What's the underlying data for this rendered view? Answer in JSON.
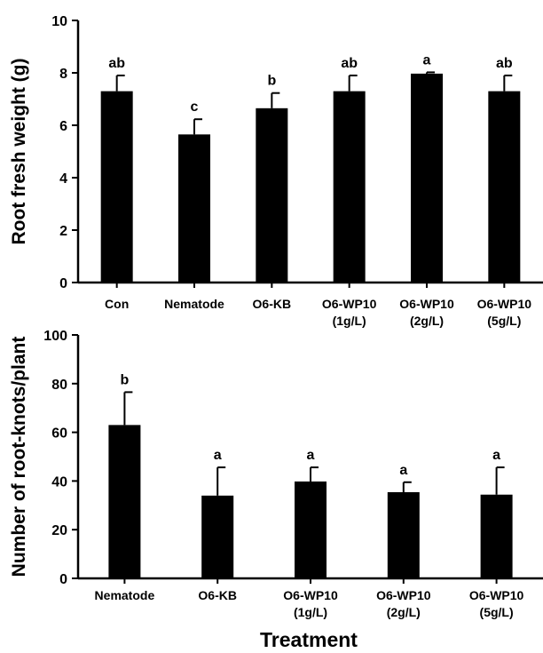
{
  "figure": {
    "xlabel": "Treatment"
  },
  "chart_data": [
    {
      "type": "bar",
      "ylabel": "Root fresh weight (g)",
      "ylim": [
        0,
        10
      ],
      "yticks": [
        0,
        2,
        4,
        6,
        8,
        10
      ],
      "categories": [
        [
          "Con"
        ],
        [
          "Nematode"
        ],
        [
          "O6-KB"
        ],
        [
          "O6-WP10",
          "(1g/L)"
        ],
        [
          "O6-WP10",
          "(2g/L)"
        ],
        [
          "O6-WP10",
          "(5g/L)"
        ]
      ],
      "values": [
        7.3,
        5.65,
        6.65,
        7.3,
        7.97,
        7.3
      ],
      "errors": [
        0.6,
        0.58,
        0.58,
        0.6,
        0.05,
        0.6
      ],
      "significance": [
        "ab",
        "c",
        "b",
        "ab",
        "a",
        "ab"
      ],
      "bar_color": "#000000"
    },
    {
      "type": "bar",
      "ylabel": "Number of root-knots/plant",
      "ylim": [
        0,
        100
      ],
      "yticks": [
        0,
        20,
        40,
        60,
        80,
        100
      ],
      "categories": [
        [
          "Nematode"
        ],
        [
          "O6-KB"
        ],
        [
          "O6-WP10",
          "(1g/L)"
        ],
        [
          "O6-WP10",
          "(2g/L)"
        ],
        [
          "O6-WP10",
          "(5g/L)"
        ]
      ],
      "values": [
        63,
        34,
        39.8,
        35.4,
        34.4
      ],
      "errors": [
        13.5,
        11.6,
        5.8,
        4.1,
        11.2
      ],
      "significance": [
        "b",
        "a",
        "a",
        "a",
        "a"
      ],
      "bar_color": "#000000"
    }
  ]
}
